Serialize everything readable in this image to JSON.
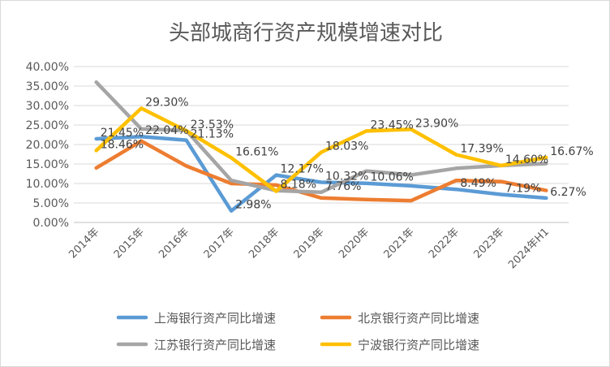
{
  "chart_data": {
    "type": "line",
    "title": "头部城商行资产规模增速对比",
    "xlabel": "",
    "ylabel": "",
    "categories": [
      "2014年",
      "2015年",
      "2016年",
      "2017年",
      "2018年",
      "2019年",
      "2020年",
      "2021年",
      "2022年",
      "2023年",
      "2024年H1"
    ],
    "ylim": [
      0,
      40
    ],
    "y_ticks": [
      "0.00%",
      "5.00%",
      "10.00%",
      "15.00%",
      "20.00%",
      "25.00%",
      "30.00%",
      "35.00%",
      "40.00%"
    ],
    "grid": true,
    "legend_position": "bottom",
    "series": [
      {
        "name": "上海银行资产同比增速",
        "color": "#5b9bd5",
        "values": [
          21.45,
          22.04,
          21.13,
          2.98,
          12.17,
          10.32,
          10.06,
          9.4,
          8.49,
          7.19,
          6.27
        ],
        "labels": [
          "21.45%",
          "22.04%",
          "21.13%",
          "2.98%",
          "12.17%",
          "10.32%",
          "10.06%",
          null,
          "8.49%",
          "7.19%",
          "6.27%"
        ]
      },
      {
        "name": "北京银行资产同比增速",
        "color": "#ed7d31",
        "values": [
          14.0,
          20.9,
          14.5,
          10.0,
          9.6,
          6.3,
          5.9,
          5.6,
          10.8,
          10.5,
          8.2
        ],
        "labels": [
          null,
          null,
          null,
          null,
          null,
          null,
          null,
          null,
          null,
          null,
          null
        ]
      },
      {
        "name": "江苏银行资产同比增速",
        "color": "#a5a5a5",
        "values": [
          36.0,
          24.0,
          23.6,
          10.8,
          8.18,
          7.76,
          13.2,
          12.2,
          13.9,
          14.6,
          15.1
        ],
        "labels": [
          null,
          null,
          null,
          null,
          "8.18%",
          "7.76%",
          null,
          null,
          null,
          "14.60%",
          null
        ]
      },
      {
        "name": "宁波银行资产同比增速",
        "color": "#ffc000",
        "values": [
          18.46,
          29.3,
          23.53,
          16.61,
          8.0,
          18.03,
          23.45,
          23.9,
          17.39,
          14.6,
          16.67
        ],
        "labels": [
          "18.46%",
          "29.30%",
          "23.53%",
          "16.61%",
          null,
          "18.03%",
          "23.45%",
          "23.90%",
          "17.39%",
          null,
          "16.67%"
        ]
      }
    ]
  }
}
